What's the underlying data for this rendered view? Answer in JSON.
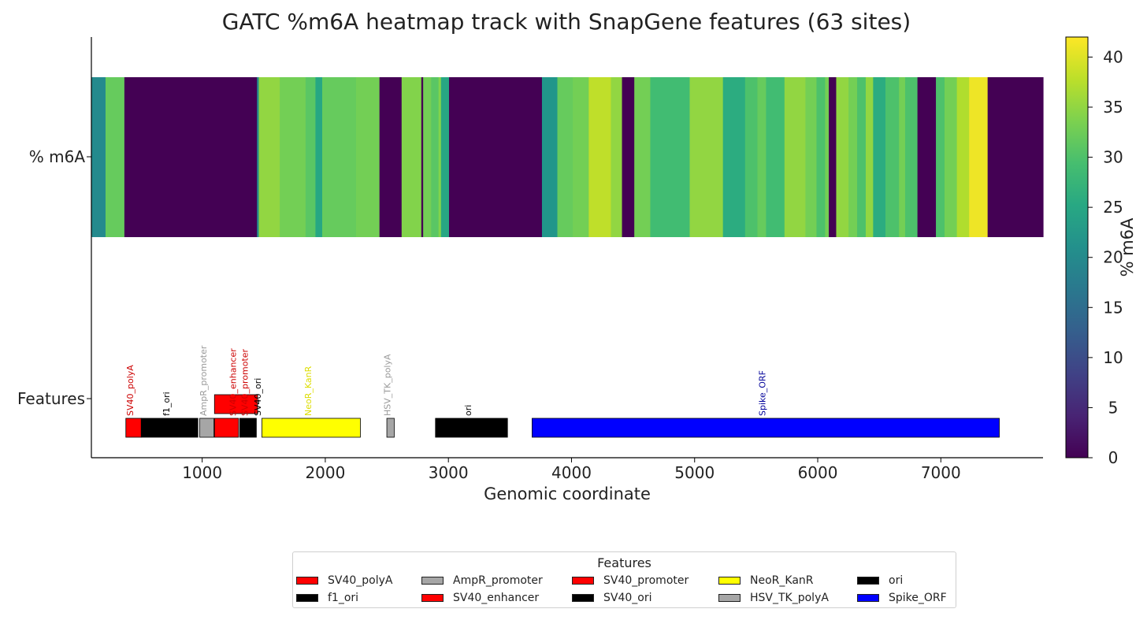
{
  "chart_data": {
    "type": "heatmap",
    "title": "GATC %m6A heatmap track with SnapGene features (63 sites)",
    "xlabel": "Genomic coordinate",
    "xlim": [
      100,
      7830
    ],
    "xticks": [
      1000,
      2000,
      3000,
      4000,
      5000,
      6000,
      7000
    ],
    "xtick_labels": [
      "1000",
      "2000",
      "3000",
      "4000",
      "5000",
      "6000",
      "7000"
    ],
    "row_labels": [
      "% m6A",
      "Features"
    ],
    "colorbar": {
      "label": "% m6A",
      "range": [
        0,
        42
      ],
      "ticks": [
        0,
        5,
        10,
        15,
        20,
        25,
        30,
        35,
        40
      ],
      "tick_labels": [
        "0",
        "5",
        "10",
        "15",
        "20",
        "25",
        "30",
        "35",
        "40"
      ]
    },
    "heatmap": [
      {
        "start": 100,
        "end": 215,
        "value": 20
      },
      {
        "start": 215,
        "end": 368,
        "value": 32
      },
      {
        "start": 368,
        "end": 1445,
        "value": 0
      },
      {
        "start": 1445,
        "end": 1460,
        "value": 20
      },
      {
        "start": 1460,
        "end": 1630,
        "value": 35
      },
      {
        "start": 1630,
        "end": 1840,
        "value": 33
      },
      {
        "start": 1840,
        "end": 1920,
        "value": 31
      },
      {
        "start": 1920,
        "end": 1975,
        "value": 25
      },
      {
        "start": 1975,
        "end": 2250,
        "value": 32
      },
      {
        "start": 2250,
        "end": 2440,
        "value": 33
      },
      {
        "start": 2440,
        "end": 2620,
        "value": 0
      },
      {
        "start": 2620,
        "end": 2780,
        "value": 34
      },
      {
        "start": 2780,
        "end": 2795,
        "value": 0
      },
      {
        "start": 2795,
        "end": 2860,
        "value": 33
      },
      {
        "start": 2860,
        "end": 2920,
        "value": 31
      },
      {
        "start": 2920,
        "end": 2940,
        "value": 34
      },
      {
        "start": 2940,
        "end": 3005,
        "value": 25
      },
      {
        "start": 3005,
        "end": 3760,
        "value": 0
      },
      {
        "start": 3760,
        "end": 3885,
        "value": 22
      },
      {
        "start": 3885,
        "end": 4010,
        "value": 32
      },
      {
        "start": 4010,
        "end": 4140,
        "value": 33
      },
      {
        "start": 4140,
        "end": 4320,
        "value": 38
      },
      {
        "start": 4320,
        "end": 4410,
        "value": 35
      },
      {
        "start": 4410,
        "end": 4510,
        "value": 0
      },
      {
        "start": 4510,
        "end": 4640,
        "value": 33
      },
      {
        "start": 4640,
        "end": 4960,
        "value": 29
      },
      {
        "start": 4960,
        "end": 5230,
        "value": 35
      },
      {
        "start": 5230,
        "end": 5410,
        "value": 26
      },
      {
        "start": 5410,
        "end": 5510,
        "value": 30
      },
      {
        "start": 5510,
        "end": 5580,
        "value": 32
      },
      {
        "start": 5580,
        "end": 5730,
        "value": 29
      },
      {
        "start": 5730,
        "end": 5900,
        "value": 35
      },
      {
        "start": 5900,
        "end": 5990,
        "value": 33
      },
      {
        "start": 5990,
        "end": 6060,
        "value": 30
      },
      {
        "start": 6060,
        "end": 6090,
        "value": 33
      },
      {
        "start": 6090,
        "end": 6150,
        "value": 0
      },
      {
        "start": 6150,
        "end": 6250,
        "value": 35
      },
      {
        "start": 6250,
        "end": 6320,
        "value": 33
      },
      {
        "start": 6320,
        "end": 6390,
        "value": 30
      },
      {
        "start": 6390,
        "end": 6450,
        "value": 35
      },
      {
        "start": 6450,
        "end": 6550,
        "value": 26
      },
      {
        "start": 6550,
        "end": 6660,
        "value": 30
      },
      {
        "start": 6660,
        "end": 6710,
        "value": 33
      },
      {
        "start": 6710,
        "end": 6810,
        "value": 30
      },
      {
        "start": 6810,
        "end": 6960,
        "value": 0
      },
      {
        "start": 6960,
        "end": 7030,
        "value": 30
      },
      {
        "start": 7030,
        "end": 7130,
        "value": 33
      },
      {
        "start": 7130,
        "end": 7230,
        "value": 37
      },
      {
        "start": 7230,
        "end": 7380,
        "value": 41
      },
      {
        "start": 7380,
        "end": 7830,
        "value": 0
      }
    ],
    "features": [
      {
        "name": "SV40_polyA",
        "start": 380,
        "end": 505,
        "lane": 0,
        "color": "#ff0000",
        "label_color": "#cc0000"
      },
      {
        "name": "f1_ori",
        "start": 505,
        "end": 965,
        "lane": 0,
        "color": "#000000",
        "label_color": "#000000"
      },
      {
        "name": "AmpR_promoter",
        "start": 980,
        "end": 1095,
        "lane": 0,
        "color": "#a6a6a6",
        "label_color": "#999999"
      },
      {
        "name": "SV40_promoter",
        "start": 1100,
        "end": 1295,
        "lane": 0,
        "color": "#ff0000",
        "label_color": "#cc0000"
      },
      {
        "name": "SV40_enhancer",
        "start": 1100,
        "end": 1450,
        "lane": 1,
        "color": "#ff0000",
        "label_color": "#cc0000"
      },
      {
        "name": "SV40_ori",
        "start": 1305,
        "end": 1440,
        "lane": 0,
        "color": "#000000",
        "label_color": "#000000"
      },
      {
        "name": "NeoR_KanR",
        "start": 1485,
        "end": 2285,
        "lane": 0,
        "color": "#ffff00",
        "label_color": "#dddd00"
      },
      {
        "name": "HSV_TK_polyA",
        "start": 2500,
        "end": 2560,
        "lane": 0,
        "color": "#a6a6a6",
        "label_color": "#999999"
      },
      {
        "name": "ori",
        "start": 2895,
        "end": 3480,
        "lane": 0,
        "color": "#000000",
        "label_color": "#000000"
      },
      {
        "name": "Spike_ORF",
        "start": 3680,
        "end": 7475,
        "lane": 0,
        "color": "#0000ff",
        "label_color": "#000099"
      }
    ],
    "feature_labels": [
      {
        "text": "SV40_polyA",
        "at": 440,
        "color": "#cc0000"
      },
      {
        "text": "f1_ori",
        "at": 735,
        "color": "#000000"
      },
      {
        "text": "AmpR_promoter",
        "at": 1035,
        "color": "#999999"
      },
      {
        "text": "SV40_enhancer",
        "at": 1275,
        "color": "#cc0000"
      },
      {
        "text": "SV40_promoter",
        "at": 1370,
        "color": "#cc0000"
      },
      {
        "text": "SV40_ori",
        "at": 1475,
        "color": "#000000"
      },
      {
        "text": "NeoR_KanR",
        "at": 1885,
        "color": "#dddd00"
      },
      {
        "text": "HSV_TK_polyA",
        "at": 2530,
        "color": "#999999"
      },
      {
        "text": "ori",
        "at": 3185,
        "color": "#000000"
      },
      {
        "text": "Spike_ORF",
        "at": 5575,
        "color": "#000099"
      }
    ],
    "legend": {
      "title": "Features",
      "placement": "bottom-center",
      "columns": 5,
      "entries": [
        {
          "name": "SV40_polyA",
          "color": "#ff0000"
        },
        {
          "name": "f1_ori",
          "color": "#000000"
        },
        {
          "name": "AmpR_promoter",
          "color": "#a6a6a6"
        },
        {
          "name": "SV40_enhancer",
          "color": "#ff0000"
        },
        {
          "name": "SV40_promoter",
          "color": "#ff0000"
        },
        {
          "name": "SV40_ori",
          "color": "#000000"
        },
        {
          "name": "NeoR_KanR",
          "color": "#ffff00"
        },
        {
          "name": "HSV_TK_polyA",
          "color": "#a6a6a6"
        },
        {
          "name": "ori",
          "color": "#000000"
        },
        {
          "name": "Spike_ORF",
          "color": "#0000ff"
        }
      ]
    }
  }
}
